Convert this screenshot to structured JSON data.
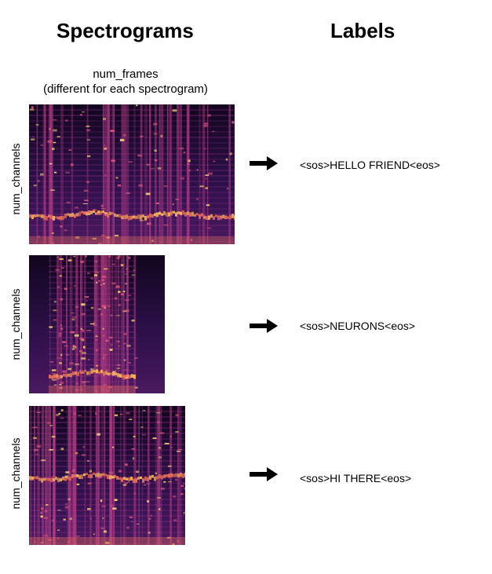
{
  "headings": {
    "spectrograms": "Spectrograms",
    "labels": "Labels"
  },
  "num_frames_note": {
    "line1": "num_frames",
    "line2": "(different for each spectrogram)"
  },
  "colors": {
    "background": "#ffffff",
    "text": "#000000",
    "spectrogram_dark": "#1b0a2e",
    "spectrogram_mid": "#8c2a7c",
    "spectrogram_bright": "#f6d36a"
  },
  "rows": [
    {
      "ylabel": "num_channels",
      "label": "<sos>HELLO FRIEND<eos>",
      "arrow_icon": "right-arrow-icon"
    },
    {
      "ylabel": "num_channels",
      "label": "<sos>NEURONS<eos>",
      "arrow_icon": "right-arrow-icon"
    },
    {
      "ylabel": "num_channels",
      "label": "<sos>HI THERE<eos>",
      "arrow_icon": "right-arrow-icon"
    }
  ]
}
